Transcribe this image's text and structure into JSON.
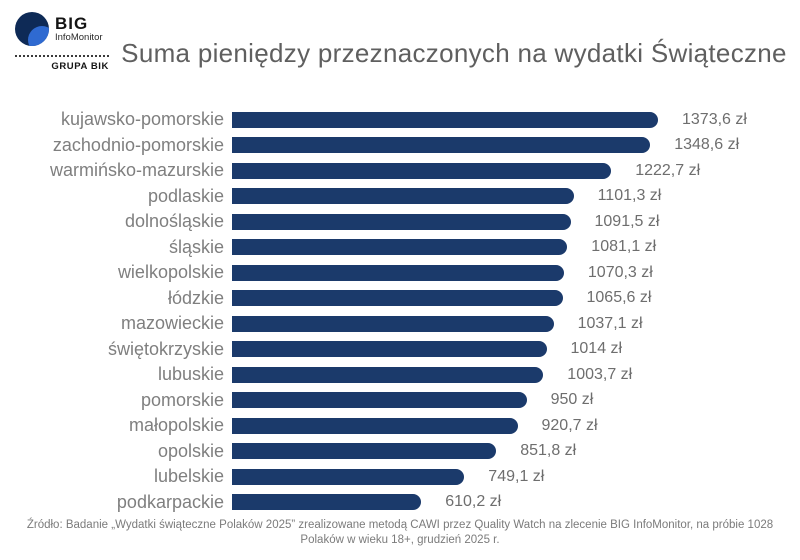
{
  "logo": {
    "brand": "BIG",
    "subbrand": "InfoMonitor",
    "group": "GRUPA BIK"
  },
  "title": "Suma pieniędzy przeznaczonych na wydatki Świąteczne",
  "chart_data": {
    "type": "bar",
    "orientation": "horizontal",
    "unit": "zł",
    "title": "Suma pieniędzy przeznaczonych na wydatki Świąteczne",
    "categories": [
      "kujawsko-pomorskie",
      "zachodnio-pomorskie",
      "warmińsko-mazurskie",
      "podlaskie",
      "dolnośląskie",
      "śląskie",
      "wielkopolskie",
      "łódzkie",
      "mazowieckie",
      "świętokrzyskie",
      "lubuskie",
      "pomorskie",
      "małopolskie",
      "opolskie",
      "lubelskie",
      "podkarpackie"
    ],
    "values": [
      1373.6,
      1348.6,
      1222.7,
      1101.3,
      1091.5,
      1081.1,
      1070.3,
      1065.6,
      1037.1,
      1014,
      1003.7,
      950,
      920.7,
      851.8,
      749.1,
      610.2
    ],
    "value_labels": [
      "1373,6 zł",
      "1348,6 zł",
      "1222,7 zł",
      "1101,3 zł",
      "1091,5 zł",
      "1081,1 zł",
      "1070,3 zł",
      "1065,6 zł",
      "1037,1 zł",
      "1014 zł",
      "1003,7 zł",
      "950 zł",
      "920,7 zł",
      "851,8 zł",
      "749,1 zł",
      "610,2 zł"
    ],
    "xlim": [
      0,
      1400
    ],
    "grid": false,
    "legend": false,
    "bar_color": "#1b3a6b"
  },
  "footer": "Źródło: Badanie „Wydatki świąteczne Polaków 2025” zrealizowane metodą CAWI przez Quality Watch na zlecenie BIG InfoMonitor, na próbie 1028 Polaków w wieku 18+, grudzień 2025 r.",
  "colors": {
    "bar": "#1b3a6b",
    "title_text": "#5f5f5f",
    "category_text": "#7f7f7f",
    "value_text": "#6e6e6e",
    "footer_text": "#7b7b7b",
    "logo_dark": "#0e2a56",
    "logo_light": "#2f6ad1"
  }
}
